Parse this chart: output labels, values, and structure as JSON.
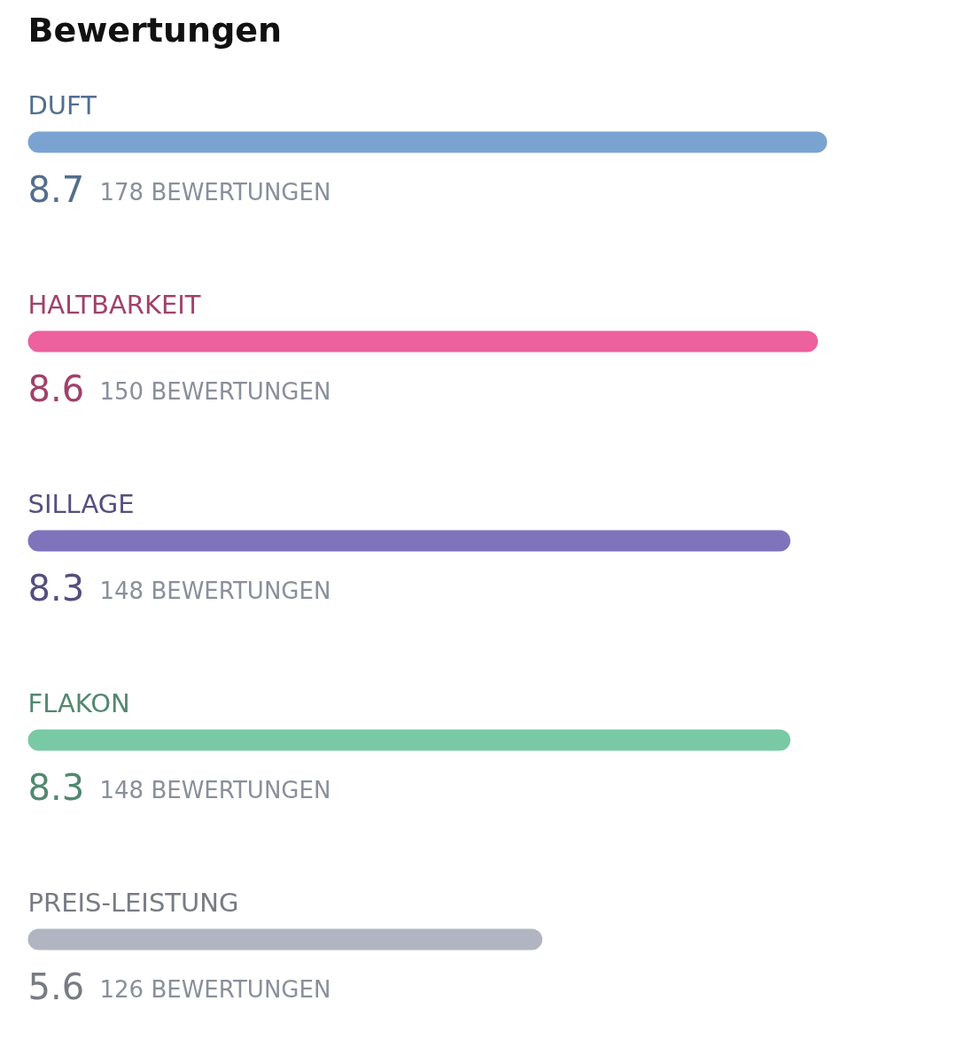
{
  "chart_data": {
    "type": "bar",
    "orientation": "horizontal",
    "title": "Bewertungen",
    "categories": [
      "DUFT",
      "HALTBARKEIT",
      "SILLAGE",
      "FLAKON",
      "PREIS-LEISTUNG"
    ],
    "values": [
      8.7,
      8.6,
      8.3,
      8.3,
      5.6
    ],
    "colors": [
      "#7ba3d1",
      "#ec619e",
      "#7f74bc",
      "#79c9a5",
      "#b1b5c1"
    ],
    "data_labels": true,
    "annotations": [
      "178 BEWERTUNGEN",
      "150 BEWERTUNGEN",
      "148 BEWERTUNGEN",
      "148 BEWERTUNGEN",
      "126 BEWERTUNGEN"
    ]
  }
}
